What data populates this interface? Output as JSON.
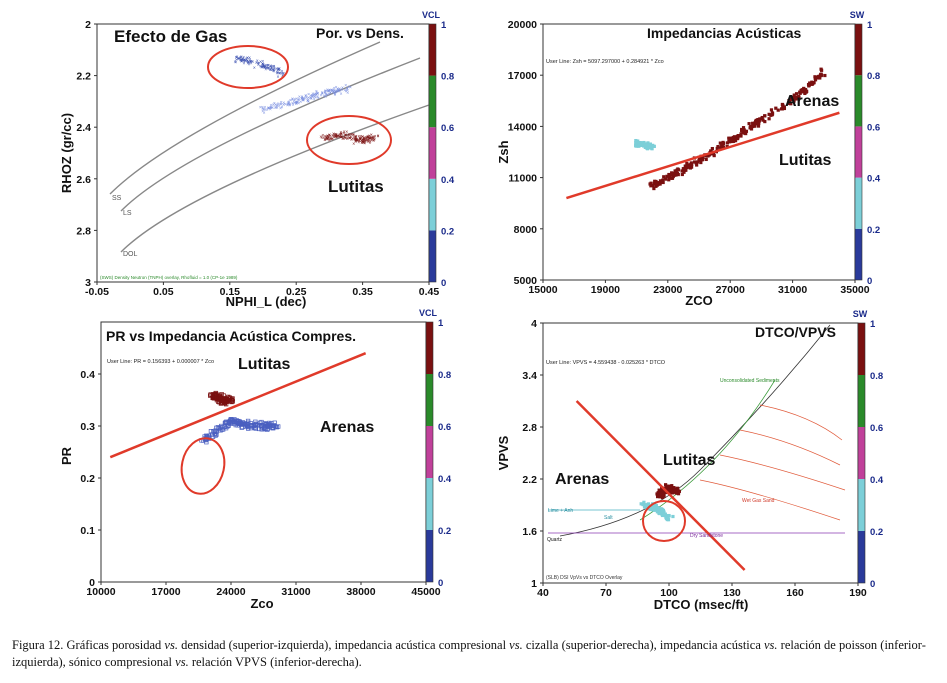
{
  "caption": {
    "figure_label": "Figura 12.",
    "segments": [
      " Gráficas porosidad ",
      "vs.",
      " densidad (superior-izquierda), impedancia acústica compresional ",
      "vs.",
      " cizalla (superior-derecha), impedancia acústica ",
      "vs.",
      " relación de poisson (inferior-izquierda), sónico compresional ",
      "vs.",
      " relación VPVS (inferior-derecha)."
    ]
  },
  "chart_data": [
    {
      "id": "tl",
      "type": "scatter",
      "title": "Efecto de Gas",
      "subtitle": "Por. vs Dens.",
      "xlabel": "NPHI_L (dec)",
      "ylabel": "RHOZ (gr/cc)",
      "xlim": [
        -0.05,
        0.45
      ],
      "ylim": [
        2,
        3
      ],
      "y_inverted": true,
      "xticks": [
        "-0.05",
        "0.05",
        "0.15",
        "0.25",
        "0.35",
        "0.45"
      ],
      "yticks": [
        "2",
        "2.2",
        "2.4",
        "2.6",
        "2.8",
        "3"
      ],
      "colorbar": {
        "label": "VCL",
        "ticks": [
          "0",
          "0.2",
          "0.4",
          "0.6",
          "0.8",
          "1"
        ]
      },
      "lithology_lines": [
        "SS",
        "LS",
        "DOL"
      ],
      "overlay_note": "(SWS) Density Neutron (TNPH) overlay, Rhofluid = 1.0 (CP-1e 1989)",
      "annotations": [
        "Lutitas"
      ],
      "series": [
        {
          "name": "gas_effect",
          "x": [
            0.16,
            0.2,
            0.23
          ],
          "y": [
            2.13,
            2.16,
            2.19
          ],
          "color": "#3a4fb0"
        },
        {
          "name": "sands",
          "x": [
            0.2,
            0.25,
            0.29,
            0.33
          ],
          "y": [
            2.33,
            2.3,
            2.27,
            2.25
          ],
          "color": "#7a8fe0"
        },
        {
          "name": "shales",
          "x": [
            0.29,
            0.32,
            0.35,
            0.37
          ],
          "y": [
            2.44,
            2.43,
            2.45,
            2.44
          ],
          "color": "#7a1010"
        }
      ]
    },
    {
      "id": "tr",
      "type": "scatter",
      "title": "Impedancias Acústicas",
      "xlabel": "ZCO",
      "ylabel": "Zsh",
      "xlim": [
        15000,
        35000
      ],
      "ylim": [
        5000,
        20000
      ],
      "xticks": [
        "15000",
        "19000",
        "23000",
        "27000",
        "31000",
        "35000"
      ],
      "yticks": [
        "5000",
        "8000",
        "11000",
        "14000",
        "17000",
        "20000"
      ],
      "colorbar": {
        "label": "SW",
        "ticks": [
          "0",
          "0.2",
          "0.4",
          "0.6",
          "0.8",
          "1"
        ]
      },
      "user_line": "User Line: Zsh = 5097.297000 + 0.284921 * Zco",
      "annotations": [
        "Arenas",
        "Lutitas"
      ],
      "series": [
        {
          "name": "main",
          "x": [
            22000,
            24000,
            26000,
            28000,
            31000,
            33000
          ],
          "y": [
            10500,
            11500,
            12500,
            13800,
            15500,
            17200
          ],
          "color": "#7a1010"
        },
        {
          "name": "water",
          "x": [
            21000,
            22000
          ],
          "y": [
            13000,
            12800
          ],
          "color": "#7ccfd8"
        }
      ],
      "fit_line": {
        "x": [
          16500,
          34000
        ],
        "y": [
          9800,
          14800
        ]
      }
    },
    {
      "id": "bl",
      "type": "scatter",
      "title": "PR vs Impedancia Acústica Compres.",
      "xlabel": "Zco",
      "ylabel": "PR",
      "xlim": [
        10000,
        45000
      ],
      "ylim": [
        0,
        0.5
      ],
      "xticks": [
        "10000",
        "17000",
        "24000",
        "31000",
        "38000",
        "45000"
      ],
      "yticks": [
        "0",
        "0.1",
        "0.2",
        "0.3",
        "0.4"
      ],
      "colorbar": {
        "label": "VCL",
        "ticks": [
          "0",
          "0.2",
          "0.4",
          "0.6",
          "0.8",
          "1"
        ]
      },
      "user_line": "User Line: PR = 0.156393 + 0.000007 * Zco",
      "annotations": [
        "Lutitas",
        "Arenas"
      ],
      "series": [
        {
          "name": "shales",
          "x": [
            22000,
            23000,
            24000
          ],
          "y": [
            0.36,
            0.35,
            0.35
          ],
          "color": "#7a1010"
        },
        {
          "name": "sands",
          "x": [
            21000,
            24000,
            26000,
            29000
          ],
          "y": [
            0.27,
            0.31,
            0.3,
            0.3
          ],
          "color": "#4a5fc0"
        }
      ],
      "fit_line": {
        "x": [
          11000,
          38500
        ],
        "y": [
          0.24,
          0.44
        ]
      }
    },
    {
      "id": "br",
      "type": "scatter",
      "title": "DTCO/VPVS",
      "xlabel": "DTCO (msec/ft)",
      "ylabel": "VPVS",
      "xlim": [
        40,
        190
      ],
      "ylim": [
        1,
        4
      ],
      "xticks": [
        "40",
        "70",
        "100",
        "130",
        "160",
        "190"
      ],
      "yticks": [
        "1",
        "1.6",
        "2.2",
        "2.8",
        "3.4",
        "4"
      ],
      "colorbar": {
        "label": "SW",
        "ticks": [
          "0",
          "0.2",
          "0.4",
          "0.6",
          "0.8",
          "1"
        ]
      },
      "user_line": "User Line: VPVS = 4.559438 - 0.025263 * DTCO",
      "overlay_note": "(SLB) DSI VpVs vs DTCO Overlay",
      "curve_labels": [
        "Unconsolidated Sediments",
        "Lime + Anh",
        "Salt",
        "Quartz",
        "Dry Sandstone",
        "Wet Gas Sand"
      ],
      "annotations": [
        "Lutitas",
        "Arenas"
      ],
      "series": [
        {
          "name": "shales",
          "x": [
            95,
            100,
            104
          ],
          "y": [
            2.0,
            2.1,
            2.05
          ],
          "color": "#7a1010"
        },
        {
          "name": "sands",
          "x": [
            88,
            95,
            100
          ],
          "y": [
            1.9,
            1.85,
            1.75
          ],
          "color": "#7ccfd8"
        }
      ],
      "fit_line": {
        "x": [
          56,
          136
        ],
        "y": [
          3.1,
          1.15
        ]
      }
    }
  ]
}
